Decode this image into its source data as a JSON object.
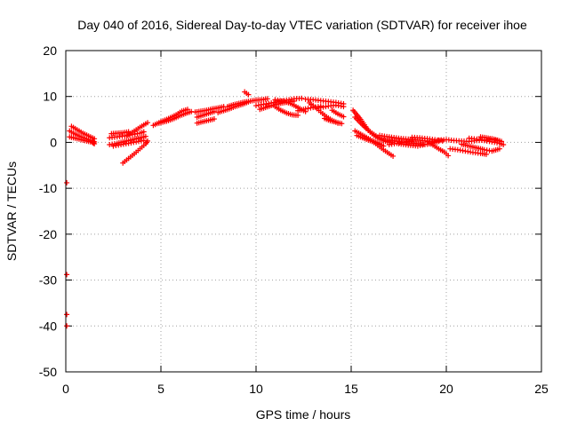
{
  "chart_data": {
    "type": "scatter",
    "title": "Day 040 of 2016, Sidereal Day-to-day VTEC variation (SDTVAR) for receiver ihoe",
    "xlabel": "GPS time / hours",
    "ylabel": "SDTVAR / TECUs",
    "xlim": [
      0,
      25
    ],
    "ylim": [
      -50,
      20
    ],
    "xticks": [
      0,
      5,
      10,
      15,
      20,
      25
    ],
    "yticks": [
      -50,
      -40,
      -30,
      -20,
      -10,
      0,
      10,
      20
    ],
    "grid": true,
    "marker_color": "#ff0000",
    "series": [
      {
        "name": "SDTVAR",
        "tracks": [
          [
            [
              0.2,
              2.5
            ],
            [
              0.4,
              2.0
            ],
            [
              0.6,
              1.6
            ],
            [
              0.8,
              1.2
            ],
            [
              1.0,
              0.9
            ],
            [
              1.2,
              0.6
            ],
            [
              1.4,
              0.3
            ],
            [
              1.5,
              0.1
            ]
          ],
          [
            [
              0.3,
              3.5
            ],
            [
              0.5,
              3.0
            ],
            [
              0.7,
              2.5
            ],
            [
              0.9,
              2.0
            ],
            [
              1.1,
              1.6
            ],
            [
              1.3,
              1.2
            ],
            [
              1.5,
              0.8
            ]
          ],
          [
            [
              0.2,
              1.2
            ],
            [
              0.5,
              0.9
            ],
            [
              0.8,
              0.6
            ],
            [
              1.1,
              0.3
            ],
            [
              1.4,
              0.0
            ],
            [
              1.5,
              -0.3
            ]
          ],
          [
            [
              2.3,
              1.0
            ],
            [
              2.7,
              1.2
            ],
            [
              3.1,
              1.4
            ],
            [
              3.5,
              1.7
            ],
            [
              3.9,
              2.0
            ],
            [
              4.1,
              2.3
            ]
          ],
          [
            [
              2.3,
              -0.5
            ],
            [
              2.7,
              -0.2
            ],
            [
              3.1,
              0.2
            ],
            [
              3.5,
              0.6
            ],
            [
              3.9,
              1.0
            ],
            [
              4.2,
              1.3
            ]
          ],
          [
            [
              2.5,
              -0.8
            ],
            [
              2.9,
              -0.5
            ],
            [
              3.3,
              -0.2
            ],
            [
              3.7,
              0.1
            ],
            [
              4.1,
              0.4
            ]
          ],
          [
            [
              3.0,
              -4.5
            ],
            [
              3.3,
              -3.5
            ],
            [
              3.6,
              -2.5
            ],
            [
              3.9,
              -1.4
            ],
            [
              4.2,
              -0.3
            ],
            [
              4.3,
              0.3
            ]
          ],
          [
            [
              3.2,
              1.5
            ],
            [
              3.5,
              2.2
            ],
            [
              3.8,
              3.0
            ],
            [
              4.1,
              3.8
            ],
            [
              4.3,
              4.3
            ]
          ],
          [
            [
              2.4,
              1.9
            ],
            [
              2.7,
              2.0
            ],
            [
              3.0,
              2.1
            ],
            [
              3.3,
              2.3
            ]
          ],
          [
            [
              4.6,
              3.7
            ],
            [
              5.0,
              4.5
            ],
            [
              5.4,
              5.2
            ],
            [
              5.8,
              6.0
            ],
            [
              6.1,
              6.8
            ],
            [
              6.4,
              7.2
            ]
          ],
          [
            [
              4.9,
              4.2
            ],
            [
              5.3,
              4.6
            ],
            [
              5.7,
              5.2
            ],
            [
              6.0,
              5.8
            ],
            [
              6.3,
              6.3
            ],
            [
              6.6,
              6.7
            ]
          ],
          [
            [
              6.8,
              6.6
            ],
            [
              7.1,
              6.8
            ],
            [
              7.4,
              7.0
            ],
            [
              7.7,
              7.3
            ],
            [
              8.0,
              7.5
            ],
            [
              8.3,
              7.8
            ]
          ],
          [
            [
              6.9,
              5.5
            ],
            [
              7.2,
              5.9
            ],
            [
              7.5,
              6.3
            ],
            [
              7.8,
              6.7
            ]
          ],
          [
            [
              6.9,
              4.2
            ],
            [
              7.2,
              4.5
            ],
            [
              7.5,
              4.8
            ],
            [
              7.8,
              5.1
            ]
          ],
          [
            [
              8.0,
              6.5
            ],
            [
              8.3,
              6.9
            ],
            [
              8.6,
              7.3
            ],
            [
              8.9,
              7.8
            ],
            [
              9.3,
              8.3
            ],
            [
              9.6,
              8.8
            ]
          ],
          [
            [
              8.5,
              7.8
            ],
            [
              8.8,
              8.2
            ],
            [
              9.1,
              8.5
            ],
            [
              9.4,
              8.8
            ],
            [
              9.7,
              9.0
            ],
            [
              10.0,
              9.2
            ],
            [
              10.3,
              9.3
            ],
            [
              10.6,
              9.5
            ]
          ],
          [
            [
              9.4,
              11.0
            ],
            [
              9.6,
              10.4
            ]
          ],
          [
            [
              10.2,
              7.2
            ],
            [
              10.5,
              7.6
            ],
            [
              10.8,
              8.0
            ],
            [
              11.1,
              8.3
            ],
            [
              11.4,
              8.6
            ],
            [
              11.7,
              8.8
            ],
            [
              12.0,
              9.0
            ]
          ],
          [
            [
              10.0,
              8.0
            ],
            [
              10.4,
              8.3
            ],
            [
              10.8,
              8.6
            ],
            [
              11.2,
              8.9
            ],
            [
              11.6,
              9.2
            ],
            [
              12.0,
              9.5
            ],
            [
              12.4,
              9.6
            ]
          ],
          [
            [
              11.0,
              7.8
            ],
            [
              11.3,
              7.0
            ],
            [
              11.6,
              6.4
            ],
            [
              11.9,
              6.0
            ],
            [
              12.2,
              5.9
            ]
          ],
          [
            [
              11.0,
              9.3
            ],
            [
              11.4,
              9.0
            ],
            [
              11.8,
              8.5
            ],
            [
              12.2,
              7.6
            ],
            [
              12.6,
              6.7
            ]
          ],
          [
            [
              12.2,
              6.9
            ],
            [
              12.6,
              7.3
            ],
            [
              13.0,
              7.6
            ],
            [
              13.4,
              7.9
            ]
          ],
          [
            [
              12.6,
              9.4
            ],
            [
              13.0,
              9.3
            ],
            [
              13.4,
              9.1
            ],
            [
              13.8,
              8.9
            ],
            [
              14.2,
              8.7
            ],
            [
              14.6,
              8.4
            ]
          ],
          [
            [
              12.8,
              8.6
            ],
            [
              13.1,
              7.7
            ],
            [
              13.4,
              6.6
            ],
            [
              13.7,
              5.6
            ],
            [
              14.0,
              4.8
            ],
            [
              14.3,
              4.2
            ]
          ],
          [
            [
              13.4,
              7.6
            ],
            [
              13.8,
              7.9
            ],
            [
              14.2,
              8.1
            ],
            [
              14.6,
              7.8
            ]
          ],
          [
            [
              13.6,
              5.2
            ],
            [
              13.9,
              4.7
            ],
            [
              14.2,
              4.4
            ],
            [
              14.5,
              4.1
            ]
          ],
          [
            [
              14.0,
              7.0
            ],
            [
              14.3,
              6.2
            ],
            [
              14.6,
              5.6
            ]
          ],
          [
            [
              15.1,
              7.0
            ],
            [
              15.3,
              6.0
            ],
            [
              15.5,
              5.0
            ],
            [
              15.7,
              3.8
            ],
            [
              15.9,
              2.6
            ],
            [
              16.2,
              1.5
            ],
            [
              16.5,
              0.7
            ],
            [
              16.8,
              0.2
            ],
            [
              17.1,
              0.0
            ]
          ],
          [
            [
              15.2,
              5.5
            ],
            [
              15.5,
              4.2
            ],
            [
              15.8,
              3.0
            ],
            [
              16.1,
              2.0
            ],
            [
              16.4,
              1.2
            ],
            [
              16.7,
              0.6
            ]
          ],
          [
            [
              15.2,
              2.5
            ],
            [
              15.5,
              1.8
            ],
            [
              15.8,
              1.1
            ],
            [
              16.1,
              0.4
            ],
            [
              16.4,
              -0.2
            ],
            [
              16.7,
              -0.8
            ]
          ],
          [
            [
              15.3,
              1.5
            ],
            [
              15.6,
              1.0
            ],
            [
              15.9,
              0.5
            ],
            [
              16.2,
              0.1
            ],
            [
              16.5,
              -0.3
            ]
          ],
          [
            [
              16.0,
              0.5
            ],
            [
              16.3,
              -0.3
            ],
            [
              16.6,
              -1.3
            ],
            [
              16.9,
              -2.2
            ],
            [
              17.2,
              -3.0
            ]
          ],
          [
            [
              16.5,
              1.5
            ],
            [
              17.0,
              1.2
            ],
            [
              17.5,
              0.9
            ],
            [
              18.0,
              0.7
            ],
            [
              18.5,
              0.5
            ],
            [
              19.0,
              0.3
            ],
            [
              19.5,
              0.2
            ]
          ],
          [
            [
              16.8,
              0.5
            ],
            [
              17.3,
              0.3
            ],
            [
              17.8,
              0.0
            ],
            [
              18.3,
              -0.2
            ],
            [
              18.8,
              -0.4
            ]
          ],
          [
            [
              17.0,
              -0.5
            ],
            [
              17.4,
              -0.2
            ],
            [
              17.8,
              0.1
            ],
            [
              18.2,
              0.3
            ]
          ],
          [
            [
              17.5,
              -0.3
            ],
            [
              18.0,
              -0.6
            ],
            [
              18.5,
              -0.8
            ],
            [
              19.0,
              -0.4
            ],
            [
              19.4,
              0.0
            ],
            [
              19.6,
              0.2
            ]
          ],
          [
            [
              18.2,
              1.1
            ],
            [
              18.6,
              1.0
            ],
            [
              19.0,
              0.8
            ],
            [
              19.4,
              0.6
            ],
            [
              19.8,
              0.3
            ]
          ],
          [
            [
              19.0,
              0.1
            ],
            [
              19.3,
              -0.6
            ],
            [
              19.6,
              -1.4
            ],
            [
              19.9,
              -2.1
            ],
            [
              20.1,
              -2.9
            ]
          ],
          [
            [
              19.6,
              0.5
            ],
            [
              20.0,
              0.6
            ],
            [
              20.4,
              0.4
            ],
            [
              20.8,
              0.3
            ],
            [
              21.2,
              0.2
            ],
            [
              21.6,
              0.4
            ],
            [
              22.0,
              0.5
            ],
            [
              22.4,
              0.6
            ],
            [
              22.8,
              0.3
            ]
          ],
          [
            [
              20.2,
              -1.4
            ],
            [
              20.6,
              -1.6
            ],
            [
              21.0,
              -1.9
            ],
            [
              21.4,
              -2.2
            ],
            [
              21.8,
              -2.4
            ],
            [
              22.1,
              -2.6
            ]
          ],
          [
            [
              20.8,
              -0.4
            ],
            [
              21.2,
              -0.8
            ],
            [
              21.6,
              -1.2
            ],
            [
              22.0,
              -1.6
            ],
            [
              22.4,
              -1.9
            ],
            [
              22.8,
              -1.4
            ]
          ],
          [
            [
              21.2,
              0.9
            ],
            [
              21.6,
              0.7
            ],
            [
              22.0,
              0.4
            ],
            [
              22.4,
              0.1
            ],
            [
              22.8,
              -0.2
            ],
            [
              23.0,
              -0.5
            ]
          ],
          [
            [
              21.8,
              1.2
            ],
            [
              22.1,
              1.0
            ],
            [
              22.4,
              0.8
            ],
            [
              22.7,
              0.5
            ],
            [
              22.9,
              0.2
            ]
          ],
          [
            [
              0.05,
              -8.8
            ]
          ],
          [
            [
              0.05,
              -28.8
            ]
          ],
          [
            [
              0.05,
              -37.5
            ]
          ],
          [
            [
              0.05,
              -40.0
            ]
          ]
        ]
      }
    ]
  }
}
